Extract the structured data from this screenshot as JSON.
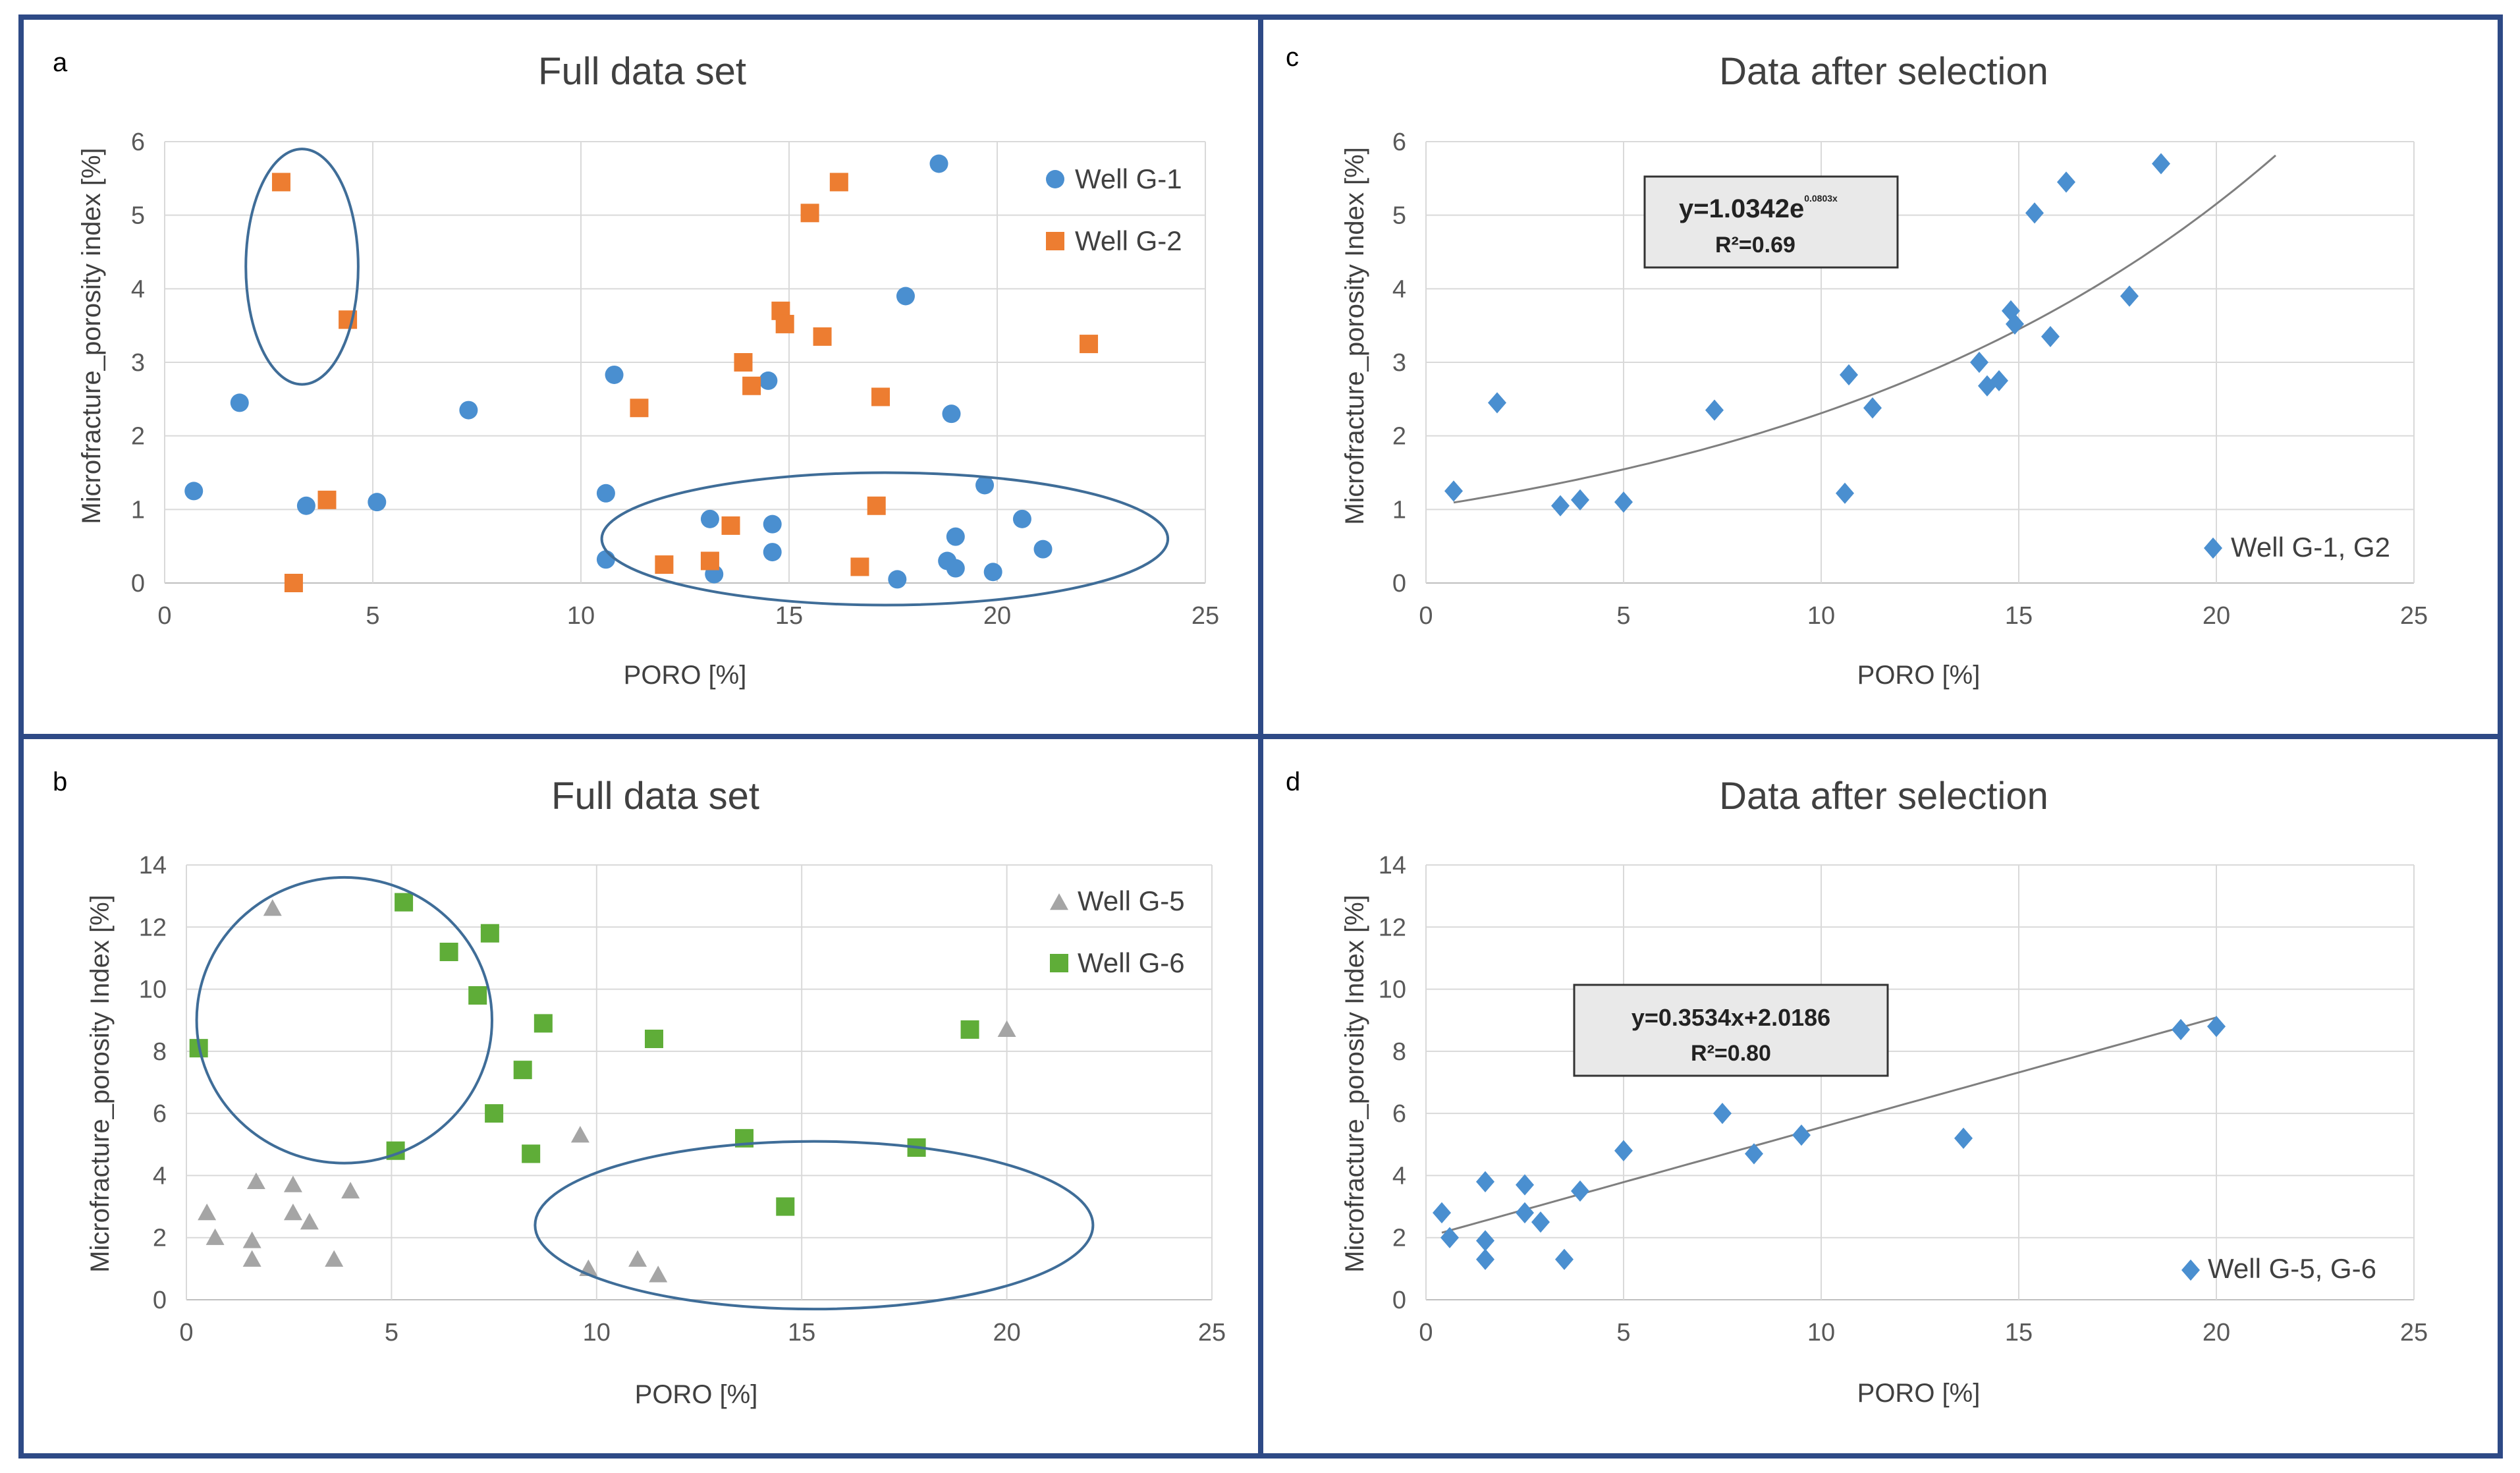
{
  "panels": [
    {
      "letter": "a",
      "title": "Full data set",
      "chart_data": {
        "type": "scatter",
        "title": "Full data set",
        "xlabel": "PORO [%]",
        "ylabel": "Microfracture_porosity index [%]",
        "xlim": [
          0,
          25
        ],
        "ylim": [
          0,
          6
        ],
        "xticks": [
          0,
          5,
          10,
          15,
          20,
          25
        ],
        "yticks": [
          0,
          1,
          2,
          3,
          4,
          5,
          6
        ],
        "grid": "vertical and horizontal",
        "legend_position": "top-right",
        "series": [
          {
            "name": "Well G-1",
            "marker": "circle",
            "color": "#4a8fd0",
            "points": [
              [
                0.7,
                1.25
              ],
              [
                1.8,
                2.45
              ],
              [
                3.4,
                1.05
              ],
              [
                5.1,
                1.1
              ],
              [
                7.3,
                2.35
              ],
              [
                10.6,
                1.22
              ],
              [
                10.6,
                0.32
              ],
              [
                10.8,
                2.83
              ],
              [
                13.1,
                0.87
              ],
              [
                13.2,
                0.12
              ],
              [
                14.5,
                2.75
              ],
              [
                14.6,
                0.8
              ],
              [
                14.6,
                0.42
              ],
              [
                17.6,
                0.05
              ],
              [
                17.8,
                3.9
              ],
              [
                18.6,
                5.7
              ],
              [
                18.8,
                0.3
              ],
              [
                18.9,
                2.3
              ],
              [
                19.0,
                0.2
              ],
              [
                19.0,
                0.63
              ],
              [
                19.7,
                1.33
              ],
              [
                19.9,
                0.15
              ],
              [
                20.6,
                0.87
              ],
              [
                21.1,
                0.46
              ]
            ]
          },
          {
            "name": "Well G-2",
            "marker": "square",
            "color": "#ed7d31",
            "points": [
              [
                2.8,
                5.45
              ],
              [
                3.1,
                0.0
              ],
              [
                3.9,
                1.13
              ],
              [
                4.4,
                3.58
              ],
              [
                11.4,
                2.38
              ],
              [
                12.0,
                0.25
              ],
              [
                13.1,
                0.3
              ],
              [
                13.6,
                0.78
              ],
              [
                13.9,
                3.0
              ],
              [
                14.1,
                2.68
              ],
              [
                14.8,
                3.7
              ],
              [
                14.9,
                3.52
              ],
              [
                15.5,
                5.03
              ],
              [
                15.8,
                3.35
              ],
              [
                16.2,
                5.45
              ],
              [
                16.7,
                0.22
              ],
              [
                17.1,
                1.05
              ],
              [
                17.2,
                2.53
              ],
              [
                22.2,
                3.25
              ]
            ]
          }
        ]
      },
      "highlight_ellipses": [
        {
          "cx": 3.3,
          "cy": 4.3,
          "rx": 1.35,
          "ry": 1.6
        },
        {
          "cx": 17.3,
          "cy": 0.6,
          "rx": 6.8,
          "ry": 0.9
        }
      ]
    },
    {
      "letter": "c",
      "title": "Data after selection",
      "chart_data": {
        "type": "scatter",
        "title": "Data after selection",
        "xlabel": "PORO [%]",
        "ylabel": "Microfracture_porosity Index [%]",
        "xlim": [
          0,
          25
        ],
        "ylim": [
          0,
          6
        ],
        "xticks": [
          0,
          5,
          10,
          15,
          20,
          25
        ],
        "yticks": [
          0,
          1,
          2,
          3,
          4,
          5,
          6
        ],
        "grid": "vertical and horizontal",
        "legend_position": "bottom-right",
        "series": [
          {
            "name": "Well G-1, G2",
            "marker": "diamond",
            "color": "#4a8fd0",
            "points": [
              [
                0.7,
                1.25
              ],
              [
                1.8,
                2.45
              ],
              [
                3.4,
                1.05
              ],
              [
                3.9,
                1.13
              ],
              [
                5.0,
                1.1
              ],
              [
                7.3,
                2.35
              ],
              [
                10.6,
                1.22
              ],
              [
                10.7,
                2.83
              ],
              [
                11.3,
                2.38
              ],
              [
                14.0,
                3.0
              ],
              [
                14.2,
                2.68
              ],
              [
                14.5,
                2.75
              ],
              [
                14.8,
                3.7
              ],
              [
                14.9,
                3.52
              ],
              [
                15.4,
                5.03
              ],
              [
                15.8,
                3.35
              ],
              [
                16.2,
                5.45
              ],
              [
                17.8,
                3.9
              ],
              [
                18.6,
                5.7
              ]
            ]
          }
        ],
        "trendline": {
          "type": "exponential",
          "a": 1.0342,
          "b": 0.0803,
          "x_range": [
            0.7,
            21.5
          ]
        },
        "equation": {
          "base": "y=1.0342e",
          "exponent": "0.0803x",
          "r2_label": "R²=0.69"
        }
      }
    },
    {
      "letter": "b",
      "title": "Full data set",
      "chart_data": {
        "type": "scatter",
        "title": "Full data set",
        "xlabel": "PORO [%]",
        "ylabel": "Microfracture_porosity Index [%]",
        "xlim": [
          0,
          25
        ],
        "ylim": [
          0,
          14
        ],
        "xticks": [
          0,
          5,
          10,
          15,
          20,
          25
        ],
        "yticks": [
          0,
          2,
          4,
          6,
          8,
          10,
          12,
          14
        ],
        "grid": "vertical and horizontal",
        "legend_position": "top-right",
        "series": [
          {
            "name": "Well G-5",
            "marker": "triangle",
            "color": "#a5a5a5",
            "points": [
              [
                0.5,
                2.8
              ],
              [
                0.7,
                2.0
              ],
              [
                1.6,
                1.3
              ],
              [
                1.6,
                1.9
              ],
              [
                1.7,
                3.8
              ],
              [
                2.1,
                12.6
              ],
              [
                2.6,
                2.8
              ],
              [
                2.6,
                3.7
              ],
              [
                3.0,
                2.5
              ],
              [
                3.6,
                1.3
              ],
              [
                4.0,
                3.5
              ],
              [
                9.6,
                5.3
              ],
              [
                9.8,
                1.0
              ],
              [
                11.0,
                1.3
              ],
              [
                11.5,
                0.8
              ],
              [
                20.0,
                8.7
              ]
            ]
          },
          {
            "name": "Well G-6",
            "marker": "square",
            "color": "#5fad38",
            "points": [
              [
                0.3,
                8.1
              ],
              [
                5.1,
                4.8
              ],
              [
                5.3,
                12.8
              ],
              [
                6.4,
                11.2
              ],
              [
                7.1,
                9.8
              ],
              [
                7.4,
                11.8
              ],
              [
                7.5,
                6.0
              ],
              [
                8.2,
                7.4
              ],
              [
                8.4,
                4.7
              ],
              [
                8.7,
                8.9
              ],
              [
                11.4,
                8.4
              ],
              [
                13.6,
                5.2
              ],
              [
                14.6,
                3.0
              ],
              [
                17.8,
                4.9
              ],
              [
                19.1,
                8.7
              ]
            ]
          }
        ]
      },
      "highlight_ellipses": [
        {
          "cx": 3.85,
          "cy": 9.0,
          "rx": 3.6,
          "ry": 4.6
        },
        {
          "cx": 15.3,
          "cy": 2.4,
          "rx": 6.8,
          "ry": 2.7
        }
      ]
    },
    {
      "letter": "d",
      "title": "Data after selection",
      "chart_data": {
        "type": "scatter",
        "title": "Data after selection",
        "xlabel": "PORO [%]",
        "ylabel": "Microfracture_porosity Index [%]",
        "xlim": [
          0,
          25
        ],
        "ylim": [
          0,
          14
        ],
        "xticks": [
          0,
          5,
          10,
          15,
          20,
          25
        ],
        "yticks": [
          0,
          2,
          4,
          6,
          8,
          10,
          12,
          14
        ],
        "grid": "vertical and horizontal",
        "legend_position": "bottom-right",
        "series": [
          {
            "name": "Well G-5, G-6",
            "marker": "diamond",
            "color": "#4a8fd0",
            "points": [
              [
                0.4,
                2.8
              ],
              [
                0.6,
                2.0
              ],
              [
                1.5,
                1.3
              ],
              [
                1.5,
                1.9
              ],
              [
                1.5,
                3.8
              ],
              [
                2.5,
                2.8
              ],
              [
                2.5,
                3.7
              ],
              [
                2.9,
                2.5
              ],
              [
                3.5,
                1.3
              ],
              [
                3.9,
                3.5
              ],
              [
                5.0,
                4.8
              ],
              [
                7.5,
                6.0
              ],
              [
                8.3,
                4.7
              ],
              [
                9.5,
                5.3
              ],
              [
                13.6,
                5.2
              ],
              [
                19.1,
                8.7
              ],
              [
                20.0,
                8.8
              ]
            ]
          }
        ],
        "trendline": {
          "type": "linear",
          "slope": 0.3534,
          "intercept": 2.0186,
          "x_range": [
            0.4,
            20.0
          ]
        },
        "equation": {
          "line1": "y=0.3534x+2.0186",
          "r2_label": "R²=0.80"
        }
      }
    }
  ]
}
